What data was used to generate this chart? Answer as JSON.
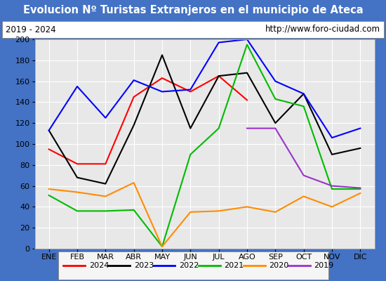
{
  "title": "Evolucion Nº Turistas Extranjeros en el municipio de Ateca",
  "title_color": "#ffffff",
  "title_bg_color": "#4472c4",
  "subtitle_left": "2019 - 2024",
  "subtitle_right": "http://www.foro-ciudad.com",
  "months": [
    "ENE",
    "FEB",
    "MAR",
    "ABR",
    "MAY",
    "JUN",
    "JUL",
    "AGO",
    "SEP",
    "OCT",
    "NOV",
    "DIC"
  ],
  "ylim": [
    0,
    200
  ],
  "yticks": [
    0,
    20,
    40,
    60,
    80,
    100,
    120,
    140,
    160,
    180,
    200
  ],
  "series": {
    "2024": {
      "color": "#ff0000",
      "values": [
        95,
        81,
        81,
        145,
        163,
        150,
        165,
        142,
        null,
        null,
        null,
        null
      ]
    },
    "2023": {
      "color": "#000000",
      "values": [
        113,
        68,
        62,
        118,
        185,
        115,
        165,
        168,
        120,
        148,
        90,
        96
      ]
    },
    "2022": {
      "color": "#0000ff",
      "values": [
        113,
        155,
        125,
        161,
        150,
        152,
        197,
        200,
        160,
        148,
        106,
        115
      ]
    },
    "2021": {
      "color": "#00bb00",
      "values": [
        51,
        36,
        36,
        37,
        2,
        90,
        115,
        195,
        143,
        136,
        57,
        57
      ]
    },
    "2020": {
      "color": "#ff8c00",
      "values": [
        57,
        54,
        50,
        63,
        2,
        35,
        36,
        40,
        35,
        50,
        40,
        53
      ]
    },
    "2019": {
      "color": "#9933cc",
      "values": [
        null,
        null,
        null,
        null,
        null,
        null,
        null,
        115,
        115,
        70,
        60,
        58
      ]
    }
  },
  "legend_order": [
    "2024",
    "2023",
    "2022",
    "2021",
    "2020",
    "2019"
  ],
  "plot_bg_color": "#e8e8e8",
  "grid_color": "#ffffff",
  "border_color": "#4472c4",
  "fig_width": 5.5,
  "fig_height": 4.0,
  "dpi": 100
}
